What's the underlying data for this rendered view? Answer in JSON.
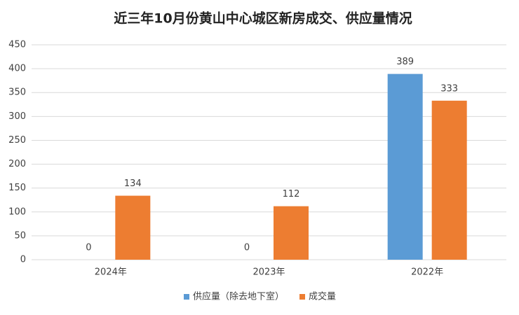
{
  "chart_data": {
    "type": "bar",
    "title": "近三年10月份黄山中心城区新房成交、供应量情况",
    "categories": [
      "2024年",
      "2023年",
      "2022年"
    ],
    "series": [
      {
        "name": "供应量（除去地下室）",
        "color": "#5b9bd5",
        "values": [
          0,
          0,
          389
        ]
      },
      {
        "name": "成交量",
        "color": "#ed7d31",
        "values": [
          134,
          112,
          333
        ]
      }
    ],
    "ylim": [
      0,
      450
    ],
    "yticks": [
      0,
      50,
      100,
      150,
      200,
      250,
      300,
      350,
      400,
      450
    ],
    "grid": true,
    "legend": "bottom"
  }
}
